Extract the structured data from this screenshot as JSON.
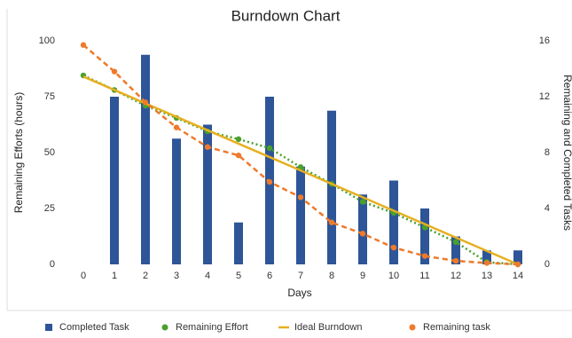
{
  "chart_data": {
    "type": "combo",
    "title": "Burndown Chart",
    "x_label": "Days",
    "y_label": "Remaining Efforts (hours)",
    "y2_label": "Remaining and Completed Tasks",
    "categories": [
      "0",
      "1",
      "2",
      "3",
      "4",
      "5",
      "6",
      "7",
      "8",
      "9",
      "10",
      "11",
      "12",
      "13",
      "14"
    ],
    "ylim": [
      0,
      100
    ],
    "yticks": [
      0,
      25,
      50,
      75,
      100
    ],
    "y2lim": [
      0,
      16
    ],
    "y2ticks": [
      0,
      4,
      8,
      12,
      16
    ],
    "series": [
      {
        "name": "Completed Task",
        "type": "bar",
        "axis": "y2",
        "color": "#2e5597",
        "values": [
          0,
          12,
          15,
          9,
          10,
          3,
          12,
          7,
          11,
          5,
          6,
          4,
          2,
          1,
          1
        ]
      },
      {
        "name": "Remaining Effort",
        "type": "line",
        "line_style": "dotted",
        "markers": true,
        "color": "#4aa02c",
        "values": [
          84.5,
          78,
          71,
          65.5,
          59.5,
          56,
          52,
          43.5,
          36,
          28,
          23,
          16.5,
          10,
          1,
          0
        ]
      },
      {
        "name": "Ideal Burndown",
        "type": "line",
        "line_style": "solid",
        "markers": false,
        "color": "#e6b020",
        "values": [
          84,
          78,
          72,
          66,
          60,
          54,
          48,
          42,
          36,
          30,
          24,
          18,
          12,
          6,
          0
        ]
      },
      {
        "name": "Remaining task",
        "type": "line",
        "line_style": "dashed",
        "markers": true,
        "axis": "y2",
        "color": "#ee7a2b",
        "values": [
          15.7,
          13.8,
          11.6,
          9.8,
          8.4,
          7.8,
          5.9,
          4.8,
          3.0,
          2.2,
          1.2,
          0.6,
          0.25,
          0.1,
          0
        ]
      }
    ]
  }
}
